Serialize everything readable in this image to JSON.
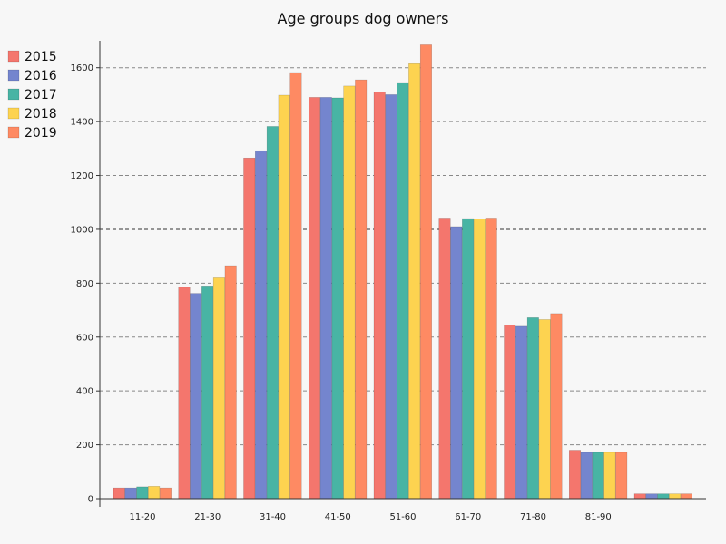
{
  "chart_data": {
    "type": "bar",
    "title": "Age groups dog owners",
    "xlabel": "",
    "ylabel": "",
    "categories": [
      "11-20",
      "21-30",
      "31-40",
      "41-50",
      "51-60",
      "61-70",
      "71-80",
      "81-90",
      ""
    ],
    "series": [
      {
        "name": "2015",
        "color": "#f4766d",
        "values": [
          40,
          785,
          1265,
          1490,
          1510,
          1042,
          645,
          180,
          18
        ]
      },
      {
        "name": "2016",
        "color": "#7485ce",
        "values": [
          40,
          762,
          1292,
          1490,
          1500,
          1010,
          640,
          172,
          18
        ]
      },
      {
        "name": "2017",
        "color": "#48b4a4",
        "values": [
          44,
          790,
          1382,
          1488,
          1545,
          1040,
          672,
          172,
          18
        ]
      },
      {
        "name": "2018",
        "color": "#fdd350",
        "values": [
          46,
          820,
          1498,
          1532,
          1615,
          1038,
          665,
          172,
          18
        ]
      },
      {
        "name": "2019",
        "color": "#fe8a63",
        "values": [
          40,
          865,
          1582,
          1555,
          1685,
          1042,
          687,
          172,
          18
        ]
      }
    ],
    "ylim": [
      0,
      1700
    ],
    "yticks": [
      0,
      200,
      400,
      600,
      800,
      1000,
      1200,
      1400,
      1600
    ],
    "grid": "horizontal-dashed",
    "legend_position": "top-left"
  }
}
